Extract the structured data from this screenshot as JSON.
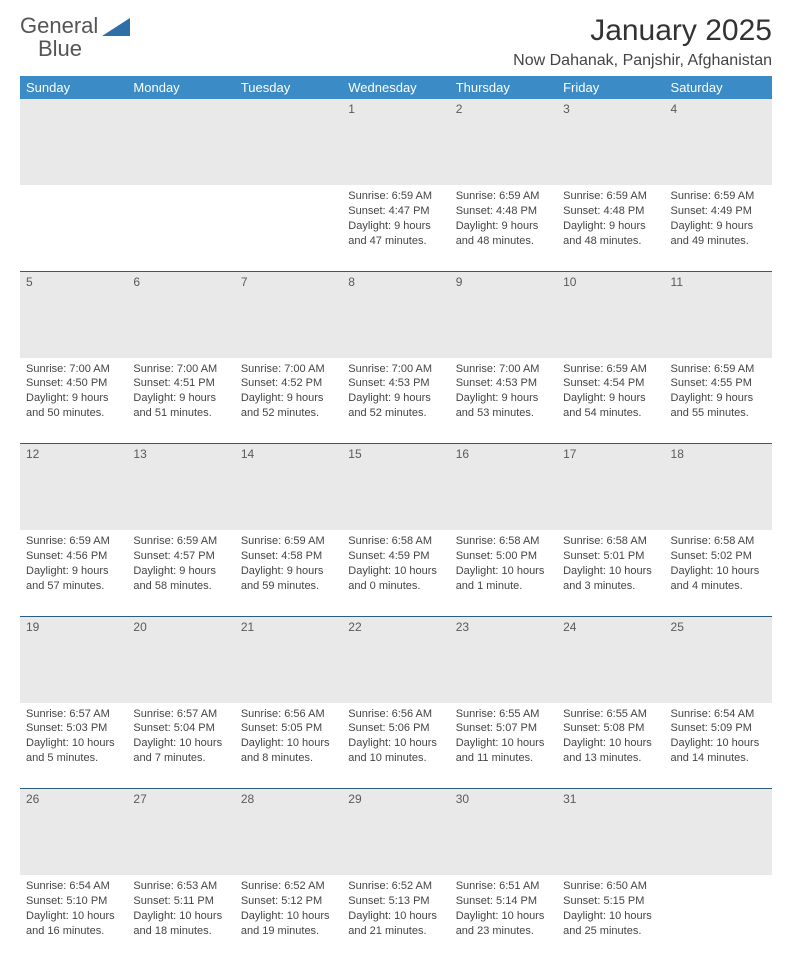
{
  "logo": {
    "line1": "General",
    "line2": "Blue",
    "triangle_color": "#2f6fa7",
    "text_color": "#555555"
  },
  "title": "January 2025",
  "location": "Now Dahanak, Panjshir, Afghanistan",
  "header_bg": "#3b8bc6",
  "header_text_color": "#ffffff",
  "daynum_bg": "#e9e9e9",
  "separator_color": "#2b5d82",
  "day_headers": [
    "Sunday",
    "Monday",
    "Tuesday",
    "Wednesday",
    "Thursday",
    "Friday",
    "Saturday"
  ],
  "weeks": [
    [
      {
        "n": "",
        "lines": []
      },
      {
        "n": "",
        "lines": []
      },
      {
        "n": "",
        "lines": []
      },
      {
        "n": "1",
        "lines": [
          "Sunrise: 6:59 AM",
          "Sunset: 4:47 PM",
          "Daylight: 9 hours and 47 minutes."
        ]
      },
      {
        "n": "2",
        "lines": [
          "Sunrise: 6:59 AM",
          "Sunset: 4:48 PM",
          "Daylight: 9 hours and 48 minutes."
        ]
      },
      {
        "n": "3",
        "lines": [
          "Sunrise: 6:59 AM",
          "Sunset: 4:48 PM",
          "Daylight: 9 hours and 48 minutes."
        ]
      },
      {
        "n": "4",
        "lines": [
          "Sunrise: 6:59 AM",
          "Sunset: 4:49 PM",
          "Daylight: 9 hours and 49 minutes."
        ]
      }
    ],
    [
      {
        "n": "5",
        "lines": [
          "Sunrise: 7:00 AM",
          "Sunset: 4:50 PM",
          "Daylight: 9 hours and 50 minutes."
        ]
      },
      {
        "n": "6",
        "lines": [
          "Sunrise: 7:00 AM",
          "Sunset: 4:51 PM",
          "Daylight: 9 hours and 51 minutes."
        ]
      },
      {
        "n": "7",
        "lines": [
          "Sunrise: 7:00 AM",
          "Sunset: 4:52 PM",
          "Daylight: 9 hours and 52 minutes."
        ]
      },
      {
        "n": "8",
        "lines": [
          "Sunrise: 7:00 AM",
          "Sunset: 4:53 PM",
          "Daylight: 9 hours and 52 minutes."
        ]
      },
      {
        "n": "9",
        "lines": [
          "Sunrise: 7:00 AM",
          "Sunset: 4:53 PM",
          "Daylight: 9 hours and 53 minutes."
        ]
      },
      {
        "n": "10",
        "lines": [
          "Sunrise: 6:59 AM",
          "Sunset: 4:54 PM",
          "Daylight: 9 hours and 54 minutes."
        ]
      },
      {
        "n": "11",
        "lines": [
          "Sunrise: 6:59 AM",
          "Sunset: 4:55 PM",
          "Daylight: 9 hours and 55 minutes."
        ]
      }
    ],
    [
      {
        "n": "12",
        "lines": [
          "Sunrise: 6:59 AM",
          "Sunset: 4:56 PM",
          "Daylight: 9 hours and 57 minutes."
        ]
      },
      {
        "n": "13",
        "lines": [
          "Sunrise: 6:59 AM",
          "Sunset: 4:57 PM",
          "Daylight: 9 hours and 58 minutes."
        ]
      },
      {
        "n": "14",
        "lines": [
          "Sunrise: 6:59 AM",
          "Sunset: 4:58 PM",
          "Daylight: 9 hours and 59 minutes."
        ]
      },
      {
        "n": "15",
        "lines": [
          "Sunrise: 6:58 AM",
          "Sunset: 4:59 PM",
          "Daylight: 10 hours and 0 minutes."
        ]
      },
      {
        "n": "16",
        "lines": [
          "Sunrise: 6:58 AM",
          "Sunset: 5:00 PM",
          "Daylight: 10 hours and 1 minute."
        ]
      },
      {
        "n": "17",
        "lines": [
          "Sunrise: 6:58 AM",
          "Sunset: 5:01 PM",
          "Daylight: 10 hours and 3 minutes."
        ]
      },
      {
        "n": "18",
        "lines": [
          "Sunrise: 6:58 AM",
          "Sunset: 5:02 PM",
          "Daylight: 10 hours and 4 minutes."
        ]
      }
    ],
    [
      {
        "n": "19",
        "lines": [
          "Sunrise: 6:57 AM",
          "Sunset: 5:03 PM",
          "Daylight: 10 hours and 5 minutes."
        ]
      },
      {
        "n": "20",
        "lines": [
          "Sunrise: 6:57 AM",
          "Sunset: 5:04 PM",
          "Daylight: 10 hours and 7 minutes."
        ]
      },
      {
        "n": "21",
        "lines": [
          "Sunrise: 6:56 AM",
          "Sunset: 5:05 PM",
          "Daylight: 10 hours and 8 minutes."
        ]
      },
      {
        "n": "22",
        "lines": [
          "Sunrise: 6:56 AM",
          "Sunset: 5:06 PM",
          "Daylight: 10 hours and 10 minutes."
        ]
      },
      {
        "n": "23",
        "lines": [
          "Sunrise: 6:55 AM",
          "Sunset: 5:07 PM",
          "Daylight: 10 hours and 11 minutes."
        ]
      },
      {
        "n": "24",
        "lines": [
          "Sunrise: 6:55 AM",
          "Sunset: 5:08 PM",
          "Daylight: 10 hours and 13 minutes."
        ]
      },
      {
        "n": "25",
        "lines": [
          "Sunrise: 6:54 AM",
          "Sunset: 5:09 PM",
          "Daylight: 10 hours and 14 minutes."
        ]
      }
    ],
    [
      {
        "n": "26",
        "lines": [
          "Sunrise: 6:54 AM",
          "Sunset: 5:10 PM",
          "Daylight: 10 hours and 16 minutes."
        ]
      },
      {
        "n": "27",
        "lines": [
          "Sunrise: 6:53 AM",
          "Sunset: 5:11 PM",
          "Daylight: 10 hours and 18 minutes."
        ]
      },
      {
        "n": "28",
        "lines": [
          "Sunrise: 6:52 AM",
          "Sunset: 5:12 PM",
          "Daylight: 10 hours and 19 minutes."
        ]
      },
      {
        "n": "29",
        "lines": [
          "Sunrise: 6:52 AM",
          "Sunset: 5:13 PM",
          "Daylight: 10 hours and 21 minutes."
        ]
      },
      {
        "n": "30",
        "lines": [
          "Sunrise: 6:51 AM",
          "Sunset: 5:14 PM",
          "Daylight: 10 hours and 23 minutes."
        ]
      },
      {
        "n": "31",
        "lines": [
          "Sunrise: 6:50 AM",
          "Sunset: 5:15 PM",
          "Daylight: 10 hours and 25 minutes."
        ]
      },
      {
        "n": "",
        "lines": []
      }
    ]
  ]
}
